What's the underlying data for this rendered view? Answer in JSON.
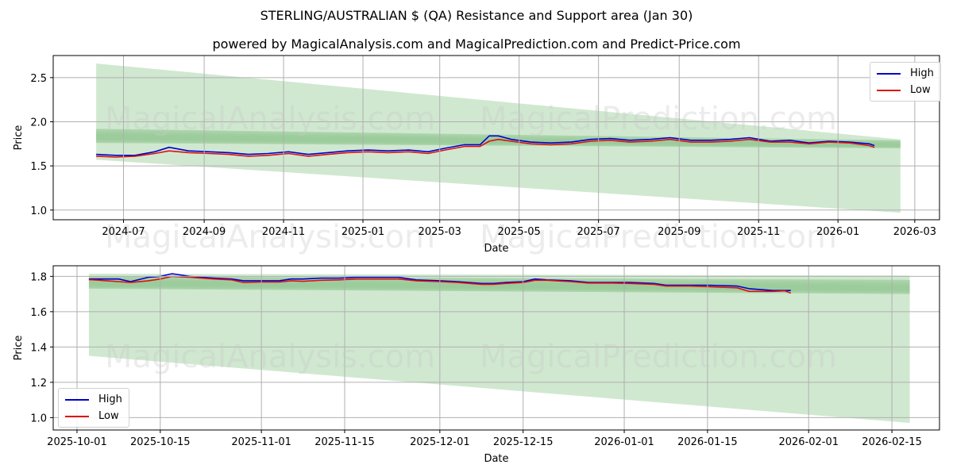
{
  "header": {
    "title": "STERLING/AUSTRALIAN $ (QA) Resistance and Support area (Jan 30)",
    "subtitle": "powered by MagicalAnalysis.com and MagicalPrediction.com and Predict-Price.com"
  },
  "watermarks": [
    "MagicalAnalysis.com",
    "MagicalPrediction.com"
  ],
  "colors": {
    "high": "#0000cc",
    "low": "#dd1111",
    "band": "#a9d6a9",
    "band_dark": "#8cc48c",
    "grid": "#b0b0b0"
  },
  "legend": {
    "high_label": "High",
    "low_label": "Low"
  },
  "chart_data": [
    {
      "type": "line",
      "title": "Full history",
      "xlabel": "Date",
      "ylabel": "Price",
      "ylim": [
        0.89,
        2.75
      ],
      "yticks": [
        1.0,
        1.5,
        2.0,
        2.5
      ],
      "xticks": [
        "2024-07",
        "2024-09",
        "2024-11",
        "2025-01",
        "2025-03",
        "2025-05",
        "2025-07",
        "2025-09",
        "2025-11",
        "2026-01",
        "2026-03"
      ],
      "grid": true,
      "legend_position": "upper right",
      "x": [
        "2024-06-10",
        "2024-06-25",
        "2024-07-10",
        "2024-07-25",
        "2024-08-05",
        "2024-08-20",
        "2024-09-05",
        "2024-09-20",
        "2024-10-05",
        "2024-10-20",
        "2024-11-05",
        "2024-11-20",
        "2024-12-05",
        "2024-12-20",
        "2025-01-05",
        "2025-01-20",
        "2025-02-05",
        "2025-02-20",
        "2025-03-05",
        "2025-03-20",
        "2025-04-01",
        "2025-04-08",
        "2025-04-15",
        "2025-04-25",
        "2025-05-10",
        "2025-05-25",
        "2025-06-10",
        "2025-06-25",
        "2025-07-10",
        "2025-07-25",
        "2025-08-10",
        "2025-08-25",
        "2025-09-10",
        "2025-09-25",
        "2025-10-10",
        "2025-10-25",
        "2025-11-10",
        "2025-11-25",
        "2025-12-10",
        "2025-12-25",
        "2026-01-10",
        "2026-01-25",
        "2026-01-29"
      ],
      "series": [
        {
          "name": "High",
          "values": [
            1.63,
            1.62,
            1.62,
            1.66,
            1.71,
            1.67,
            1.66,
            1.65,
            1.63,
            1.64,
            1.66,
            1.63,
            1.65,
            1.67,
            1.68,
            1.67,
            1.68,
            1.66,
            1.7,
            1.74,
            1.74,
            1.84,
            1.84,
            1.8,
            1.77,
            1.76,
            1.77,
            1.8,
            1.81,
            1.79,
            1.8,
            1.82,
            1.79,
            1.79,
            1.8,
            1.82,
            1.78,
            1.79,
            1.76,
            1.78,
            1.77,
            1.75,
            1.73
          ]
        },
        {
          "name": "Low",
          "values": [
            1.61,
            1.6,
            1.61,
            1.64,
            1.67,
            1.65,
            1.64,
            1.63,
            1.61,
            1.62,
            1.64,
            1.61,
            1.63,
            1.65,
            1.66,
            1.65,
            1.66,
            1.64,
            1.68,
            1.72,
            1.72,
            1.78,
            1.8,
            1.78,
            1.75,
            1.74,
            1.75,
            1.78,
            1.79,
            1.77,
            1.78,
            1.8,
            1.77,
            1.77,
            1.78,
            1.8,
            1.77,
            1.77,
            1.75,
            1.77,
            1.76,
            1.73,
            1.71
          ]
        }
      ],
      "bands": [
        {
          "name": "wide support/resistance fan",
          "x_start": "2024-06-10",
          "x_end": "2026-02-18",
          "upper": [
            2.66,
            1.8
          ],
          "lower": [
            1.57,
            0.97
          ]
        },
        {
          "name": "resistance zone",
          "x_start": "2024-06-10",
          "x_end": "2026-02-18",
          "upper": [
            1.92,
            1.79
          ],
          "lower": [
            1.76,
            1.7
          ]
        }
      ]
    },
    {
      "type": "line",
      "title": "Recent detail",
      "xlabel": "Date",
      "ylabel": "Price",
      "ylim": [
        0.93,
        1.86
      ],
      "yticks": [
        1.0,
        1.2,
        1.4,
        1.6,
        1.8
      ],
      "xticks": [
        "2025-10-01",
        "2025-10-15",
        "2025-11-01",
        "2025-11-15",
        "2025-12-01",
        "2025-12-15",
        "2026-01-01",
        "2026-01-15",
        "2026-02-01",
        "2026-02-15"
      ],
      "grid": true,
      "legend_position": "lower left",
      "x": [
        "2025-10-03",
        "2025-10-06",
        "2025-10-08",
        "2025-10-10",
        "2025-10-13",
        "2025-10-15",
        "2025-10-17",
        "2025-10-20",
        "2025-10-22",
        "2025-10-24",
        "2025-10-27",
        "2025-10-29",
        "2025-11-01",
        "2025-11-04",
        "2025-11-06",
        "2025-11-08",
        "2025-11-11",
        "2025-11-14",
        "2025-11-17",
        "2025-11-20",
        "2025-11-24",
        "2025-11-27",
        "2025-12-01",
        "2025-12-04",
        "2025-12-08",
        "2025-12-10",
        "2025-12-12",
        "2025-12-15",
        "2025-12-17",
        "2025-12-19",
        "2025-12-23",
        "2025-12-26",
        "2025-12-30",
        "2026-01-02",
        "2026-01-06",
        "2026-01-08",
        "2026-01-12",
        "2026-01-15",
        "2026-01-20",
        "2026-01-22",
        "2026-01-26",
        "2026-01-28",
        "2026-01-29"
      ],
      "series": [
        {
          "name": "High",
          "values": [
            1.785,
            1.785,
            1.785,
            1.77,
            1.795,
            1.8,
            1.815,
            1.8,
            1.795,
            1.79,
            1.785,
            1.775,
            1.775,
            1.775,
            1.785,
            1.785,
            1.79,
            1.79,
            1.795,
            1.795,
            1.795,
            1.78,
            1.775,
            1.77,
            1.76,
            1.76,
            1.765,
            1.77,
            1.785,
            1.78,
            1.775,
            1.765,
            1.765,
            1.765,
            1.76,
            1.75,
            1.75,
            1.75,
            1.745,
            1.73,
            1.72,
            1.72,
            1.72
          ]
        },
        {
          "name": "Low",
          "values": [
            1.782,
            1.775,
            1.77,
            1.765,
            1.775,
            1.785,
            1.8,
            1.795,
            1.79,
            1.785,
            1.78,
            1.765,
            1.768,
            1.768,
            1.775,
            1.772,
            1.778,
            1.78,
            1.785,
            1.785,
            1.785,
            1.775,
            1.77,
            1.765,
            1.755,
            1.755,
            1.76,
            1.765,
            1.778,
            1.778,
            1.77,
            1.762,
            1.762,
            1.76,
            1.755,
            1.745,
            1.745,
            1.742,
            1.735,
            1.715,
            1.715,
            1.718,
            1.705
          ]
        }
      ],
      "bands": [
        {
          "name": "wide support/resistance fan",
          "x_start": "2025-10-03",
          "x_end": "2026-02-18",
          "upper": [
            1.815,
            1.805
          ],
          "lower": [
            1.35,
            0.97
          ]
        },
        {
          "name": "resistance zone",
          "x_start": "2025-10-03",
          "x_end": "2026-02-18",
          "upper": [
            1.8,
            1.78
          ],
          "lower": [
            1.73,
            1.7
          ]
        }
      ]
    }
  ]
}
